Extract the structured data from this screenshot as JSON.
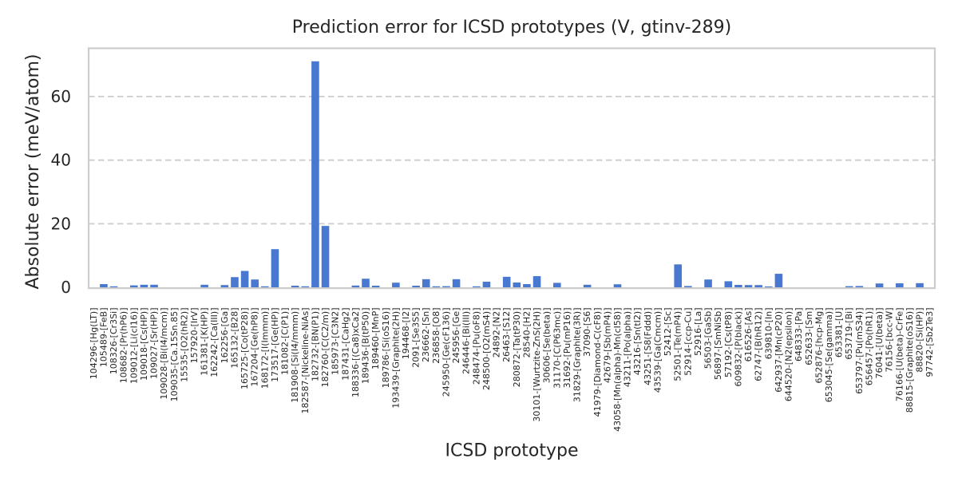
{
  "chart_data": {
    "type": "bar",
    "title": "Prediction error for ICSD prototypes (V, gtinv-289)",
    "xlabel": "ICSD prototype",
    "ylabel": "Absolute error (meV/atom)",
    "categories": [
      "104296-[Hg(LT)]",
      "105489-[FeB]",
      "108326-[Cr3Si]",
      "108682-[Pr(hP6)]",
      "109012-[Li(cI16)]",
      "109018-[Cs(HP)]",
      "109027-[Sr(HP)]",
      "109028-[Bi(I4/mcm)]",
      "109035-[Ca.15Sn.85]",
      "15535-[O2(hR2)]",
      "157920-[IrV]",
      "161381-[K(HP)]",
      "162242-[Ca(III)]",
      "162256-[Ga]",
      "165132-[B28]",
      "165725-[Co(tP28)]",
      "167204-[Ge(hP8)]",
      "168172-[I(Immm)]",
      "173517-[Ge(HP)]",
      "181082-[C(P1)]",
      "181908-[Si(I4/mmm)]",
      "182587-[Nickeline-NiAs]",
      "182732-[BN(P1)]",
      "182760-[C(C2/m)]",
      "185973-[C3N2]",
      "187431-[CaHg2]",
      "188336-[(Ca8)xCa2]",
      "189436-[B(tP50)]",
      "189460-[MnP]",
      "189786-[Si(oS16)]",
      "193439-[Graphite(2H)]",
      "194468-[I2]",
      "2091-[Se3S5]",
      "236662-[Sn]",
      "236858-[O8]",
      "245950-[Ge(cF136)]",
      "245956-[Ge]",
      "246446-[Bi(III)]",
      "248474-[Pu(oF8)]",
      "248500-[O2(mS4)]",
      "24892-[N2]",
      "26463-[S12]",
      "280872-[Ta(tP30)]",
      "28540-[H2]",
      "30101-[Wurtzite-ZnS(2H)]",
      "30606-[Se(beta)]",
      "31170-[C(P63mc)]",
      "31692-[Pu(mP16)]",
      "31829-[Graphite(3R)]",
      "37090-[S6]",
      "41979-[Diamond-C(cF8)]",
      "42679-[Sb(mP4)]",
      "43058-[Mn(alpha)-Mn(cI58)]",
      "43211-[Po(alpha)]",
      "43216-[Sn(tI2)]",
      "43251-[S8(Fddd)]",
      "43539-[Ga(Cmcm)]",
      "52412-[Sc]",
      "52501-[Te(mP4)]",
      "52914-[ccp-Cu]",
      "52916-[La]",
      "56503-[GaSb]",
      "56897-[SmNiSb]",
      "57192-[Cs(tP8)]",
      "609832-[P(black)]",
      "616526-[As]",
      "62747-[B(hR12)]",
      "639810-[In]",
      "642937-[Mn(cP20)]",
      "644520-[N2(epsilon)]",
      "648333-[Pa]",
      "652633-[Sm]",
      "652876-[hcp-Mg]",
      "653045-[Se(gamma)]",
      "653381-[U]",
      "653719-[Bi]",
      "653797-[Pu(mS34)]",
      "656457-[Po(hR1)]",
      "76041-[U(beta)]",
      "76156-[bcc-W]",
      "76166-[U(beta)-CrFe]",
      "88815-[Graphite(oS16)]",
      "88820-[Si(HP)]",
      "97742-[Sb2Te3]"
    ],
    "values": [
      0,
      1.0,
      0.3,
      0,
      0.6,
      0.8,
      0.8,
      0,
      0,
      0,
      0,
      0.8,
      0,
      0.7,
      3.2,
      5.15,
      2.45,
      0.3,
      12.0,
      0,
      0.5,
      0.3,
      71.1,
      19.3,
      0,
      0,
      0.55,
      2.7,
      0.5,
      0,
      1.45,
      0,
      0.5,
      2.55,
      0.3,
      0.35,
      2.55,
      0,
      0.3,
      1.75,
      0,
      3.3,
      1.5,
      1.0,
      3.5,
      0,
      1.4,
      0,
      0,
      0.8,
      0,
      0,
      0.95,
      0,
      0,
      0,
      0,
      0,
      7.2,
      0.4,
      0,
      2.45,
      0,
      1.9,
      0.75,
      0.7,
      0.7,
      0.25,
      4.25,
      0,
      0,
      0,
      0,
      0,
      0,
      0.35,
      0.4,
      0,
      1.2,
      0,
      1.25,
      0,
      1.3,
      0
    ],
    "ylim": [
      0,
      75.2
    ],
    "yticks": [
      0,
      20,
      40,
      60
    ],
    "grid": "dashed horizontal",
    "legend": "none",
    "bar_color": "#4878d0",
    "grid_color": "#cccccc",
    "spine_color": "#cccccc",
    "text_color": "#262626",
    "background": "#ffffff"
  }
}
